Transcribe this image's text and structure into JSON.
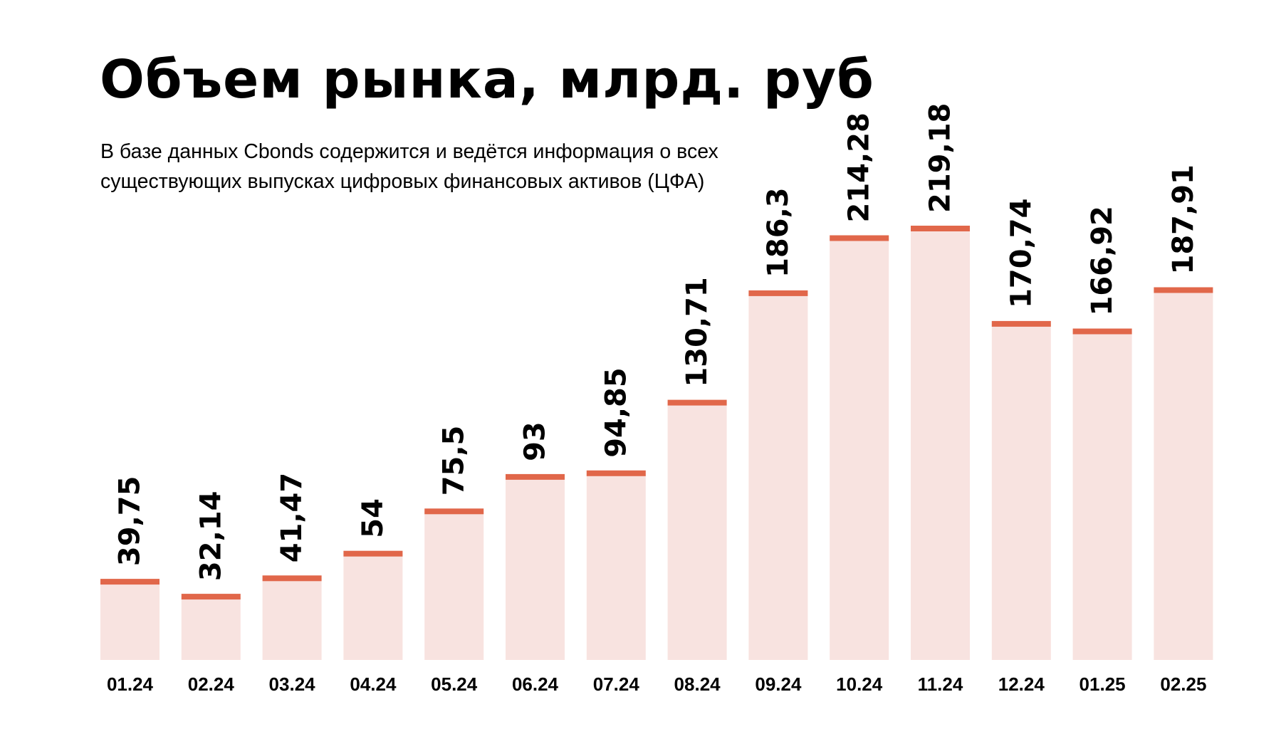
{
  "header": {
    "title": "Объем рынка, млрд. руб",
    "subtitle_lines": [
      "В базе данных Cbonds содержится и ведётся информация о всех",
      "существующих выпусках цифровых финансовых активов (ЦФА)"
    ]
  },
  "chart_data": {
    "type": "bar",
    "title": "Объем рынка, млрд. руб",
    "categories": [
      "01.24",
      "02.24",
      "03.24",
      "04.24",
      "05.24",
      "06.24",
      "07.24",
      "08.24",
      "09.24",
      "10.24",
      "11.24",
      "12.24",
      "01.25",
      "02.25"
    ],
    "values": [
      39.75,
      32.14,
      41.47,
      54,
      75.5,
      93,
      94.85,
      130.71,
      186.3,
      214.28,
      219.18,
      170.74,
      166.92,
      187.91
    ],
    "value_labels": [
      "39,75",
      "32,14",
      "41,47",
      "54",
      "75,5",
      "93",
      "94,85",
      "130,71",
      "186,3",
      "214,28",
      "219,18",
      "170,74",
      "166,92",
      "187,91"
    ],
    "xlabel": "",
    "ylabel": "",
    "ylim": [
      0,
      219.18
    ],
    "grid": false,
    "legend": "none",
    "colors": {
      "bar_fill": "#f8e3e0",
      "bar_cap": "#e1674a",
      "text": "#000000"
    }
  }
}
